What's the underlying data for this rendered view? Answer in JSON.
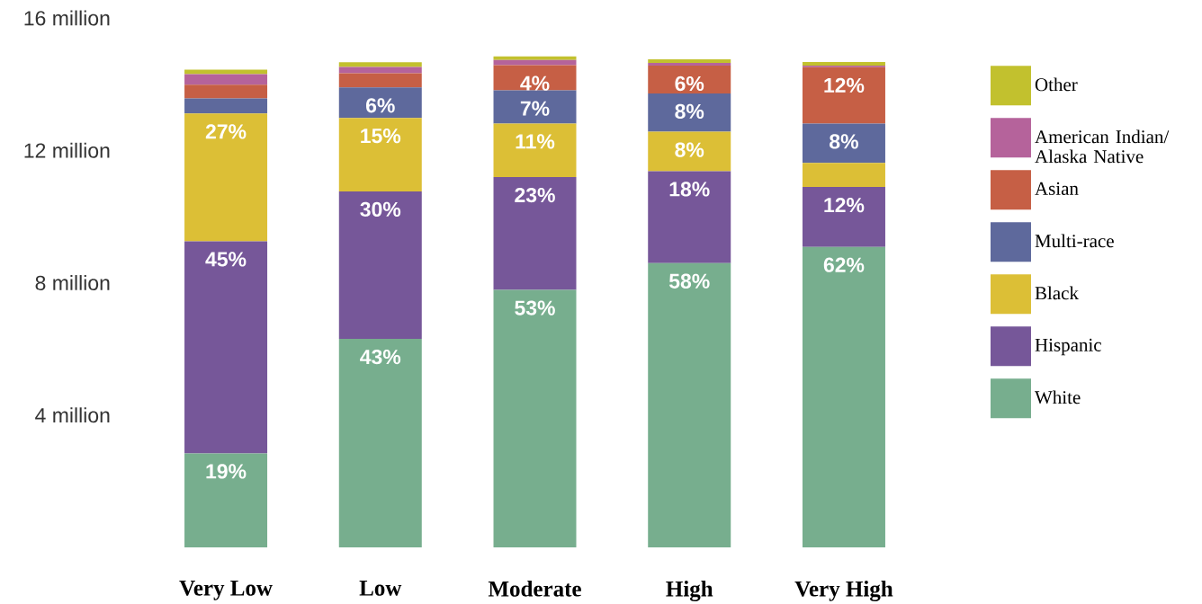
{
  "chart_data": {
    "type": "bar",
    "stacked": true,
    "legend": "right",
    "categories": [
      "Very Low",
      "Low",
      "Moderate",
      "High",
      "Very High"
    ],
    "ylim": [
      0,
      16
    ],
    "yticks": [
      {
        "value": 4,
        "label": "4 million"
      },
      {
        "value": 8,
        "label": "8 million"
      },
      {
        "value": 12,
        "label": "12 million"
      },
      {
        "value": 16,
        "label": "16 million"
      }
    ],
    "series": [
      {
        "name": "White",
        "color": "#77ae8e",
        "values": [
          2.84,
          6.3,
          7.78,
          8.59,
          9.08
        ]
      },
      {
        "name": "Hispanic",
        "color": "#765799",
        "values": [
          6.41,
          4.46,
          3.41,
          2.78,
          1.81
        ]
      },
      {
        "name": "Black",
        "color": "#dcbf36",
        "values": [
          3.86,
          2.22,
          1.62,
          1.19,
          0.73
        ]
      },
      {
        "name": "Multi-race",
        "color": "#5e699c",
        "values": [
          0.46,
          0.92,
          1.0,
          1.16,
          1.19
        ]
      },
      {
        "name": "Asian",
        "color": "#c65f45",
        "values": [
          0.41,
          0.43,
          0.76,
          0.84,
          1.7
        ]
      },
      {
        "name": "American Indian/ Alaska Native",
        "color": "#b5639b",
        "values": [
          0.32,
          0.19,
          0.16,
          0.08,
          0.05
        ]
      },
      {
        "name": "Other",
        "color": "#c2c12e",
        "values": [
          0.14,
          0.14,
          0.11,
          0.11,
          0.11
        ]
      }
    ],
    "annotations": [
      {
        "text": "19%",
        "x": "Very Low",
        "y": 2.84
      },
      {
        "text": "45%",
        "x": "Very Low",
        "y": 9.25
      },
      {
        "text": "27%",
        "x": "Very Low",
        "y": 13.11
      },
      {
        "text": "43%",
        "x": "Low",
        "y": 6.3
      },
      {
        "text": "30%",
        "x": "Low",
        "y": 10.76
      },
      {
        "text": "15%",
        "x": "Low",
        "y": 12.98
      },
      {
        "text": "6%",
        "x": "Low",
        "y": 13.9
      },
      {
        "text": "53%",
        "x": "Moderate",
        "y": 7.78
      },
      {
        "text": "23%",
        "x": "Moderate",
        "y": 11.19
      },
      {
        "text": "11%",
        "x": "Moderate",
        "y": 12.81
      },
      {
        "text": "7%",
        "x": "Moderate",
        "y": 13.81
      },
      {
        "text": "4%",
        "x": "Moderate",
        "y": 14.57
      },
      {
        "text": "58%",
        "x": "High",
        "y": 8.59
      },
      {
        "text": "18%",
        "x": "High",
        "y": 11.37
      },
      {
        "text": "8%",
        "x": "High",
        "y": 12.56
      },
      {
        "text": "8%",
        "x": "High",
        "y": 13.72
      },
      {
        "text": "6%",
        "x": "High",
        "y": 14.56
      },
      {
        "text": "62%",
        "x": "Very High",
        "y": 9.08
      },
      {
        "text": "12%",
        "x": "Very High",
        "y": 10.89
      },
      {
        "text": "8%",
        "x": "Very High",
        "y": 12.81
      },
      {
        "text": "12%",
        "x": "Very High",
        "y": 14.51
      }
    ]
  }
}
